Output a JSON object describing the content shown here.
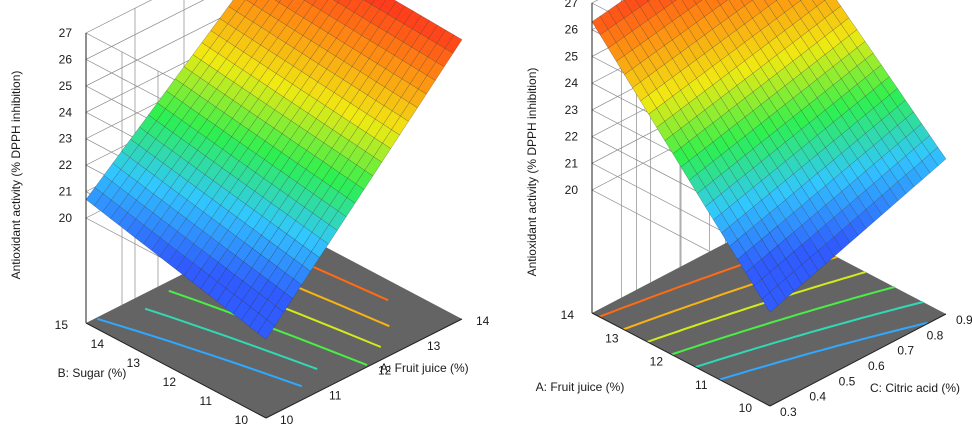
{
  "chart_data": [
    {
      "type": "surface3d",
      "zlabel": "Antioxidant activity (% DPPH inhibition)",
      "xlabel": "A: Fruit juice (%)",
      "ylabel": "B: Sugar (%)",
      "xlim": [
        10,
        14
      ],
      "ylim": [
        10,
        15
      ],
      "zlim": [
        20,
        27
      ],
      "x_ticks": [
        "10",
        "11",
        "12",
        "13",
        "14"
      ],
      "y_ticks": [
        "10",
        "11",
        "12",
        "13",
        "14",
        "15"
      ],
      "z_ticks": [
        "20",
        "21",
        "22",
        "23",
        "24",
        "25",
        "26",
        "27"
      ],
      "surface": {
        "x": [
          10,
          14
        ],
        "y": [
          10,
          15
        ],
        "z": [
          [
            19.0,
            20.7
          ],
          [
            26.6,
            27.0
          ]
        ],
        "z_note_axes": "z[i][j] with i over x, j over y"
      },
      "contours": [
        21,
        22,
        23,
        24,
        25,
        26
      ],
      "colormap": [
        "#2f5bff",
        "#31c7ff",
        "#2ef04f",
        "#f0ea12",
        "#ff8a12",
        "#ff1e1e"
      ],
      "floor_color": "#646464"
    },
    {
      "type": "surface3d",
      "zlabel": "Antioxidant activity (% DPPH inhibition)",
      "xlabel": "C: Citric acid (%)",
      "ylabel": "A: Fruit juice (%)",
      "xlim": [
        0.3,
        0.9
      ],
      "ylim": [
        10,
        14
      ],
      "zlim": [
        20,
        27
      ],
      "x_ticks": [
        "0.3",
        "0.4",
        "0.5",
        "0.6",
        "0.7",
        "0.8",
        "0.9"
      ],
      "y_ticks": [
        "10",
        "11",
        "12",
        "13",
        "14"
      ],
      "z_ticks": [
        "20",
        "21",
        "22",
        "23",
        "24",
        "25",
        "26",
        "27"
      ],
      "surface": {
        "x": [
          0.3,
          0.9
        ],
        "y": [
          10,
          14
        ],
        "z": [
          [
            18.9,
            26.3
          ],
          [
            21.2,
            27.4
          ]
        ],
        "z_note_axes": "z[i][j] with i over x, j over y"
      },
      "contours": [
        21,
        22,
        23,
        24,
        25,
        26
      ],
      "colormap": [
        "#2f5bff",
        "#31c7ff",
        "#2ef04f",
        "#f0ea12",
        "#ff8a12",
        "#ff1e1e"
      ],
      "floor_color": "#646464"
    }
  ]
}
